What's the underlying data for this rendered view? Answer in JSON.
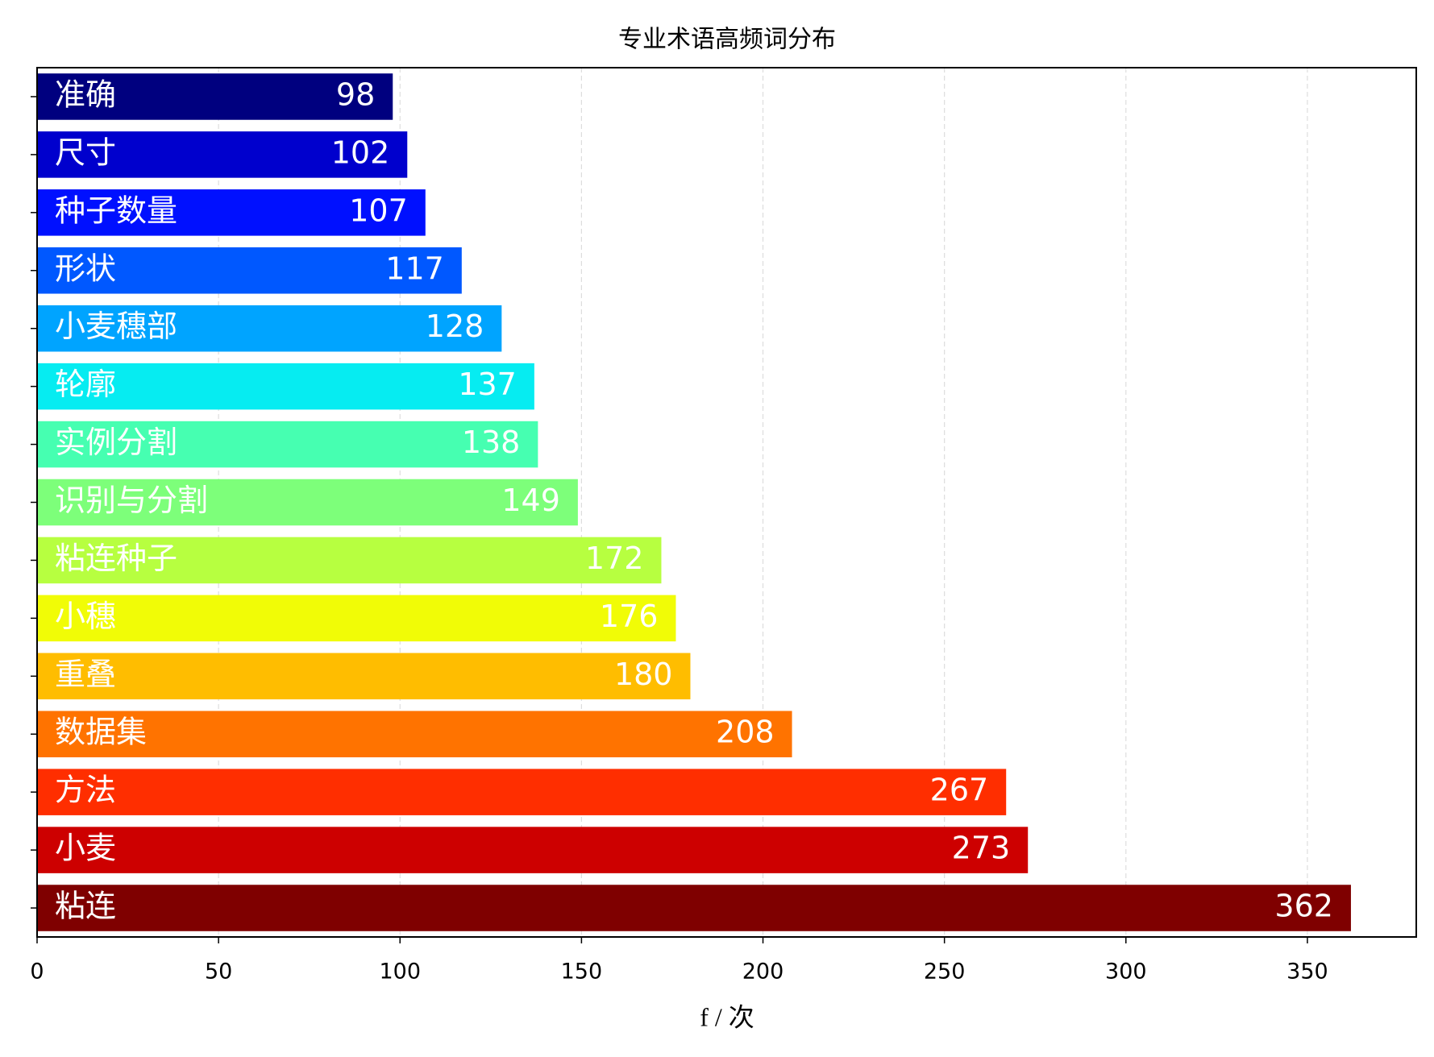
{
  "chart_data": {
    "type": "barh",
    "title": "专业术语高频词分布",
    "x_label": "f / 次",
    "categories": [
      "准确",
      "尺寸",
      "种子数量",
      "形状",
      "小麦穗部",
      "轮廓",
      "实例分割",
      "识别与分割",
      "粘连种子",
      "小穗",
      "重叠",
      "数据集",
      "方法",
      "小麦",
      "粘连"
    ],
    "values": [
      98,
      102,
      107,
      117,
      128,
      137,
      138,
      149,
      172,
      176,
      180,
      208,
      267,
      273,
      362
    ],
    "colors": [
      "#00007f",
      "#0000cd",
      "#0010ff",
      "#0058ff",
      "#00a4ff",
      "#06ecf1",
      "#46ffb1",
      "#7dff7a",
      "#b7ff40",
      "#f1fc06",
      "#ffbd00",
      "#ff7300",
      "#ff2e00",
      "#cd0000",
      "#7f0000"
    ],
    "xlim": [
      0,
      380
    ],
    "xticks": [
      0,
      50,
      100,
      150,
      200,
      250,
      300,
      350
    ],
    "grid": true
  }
}
